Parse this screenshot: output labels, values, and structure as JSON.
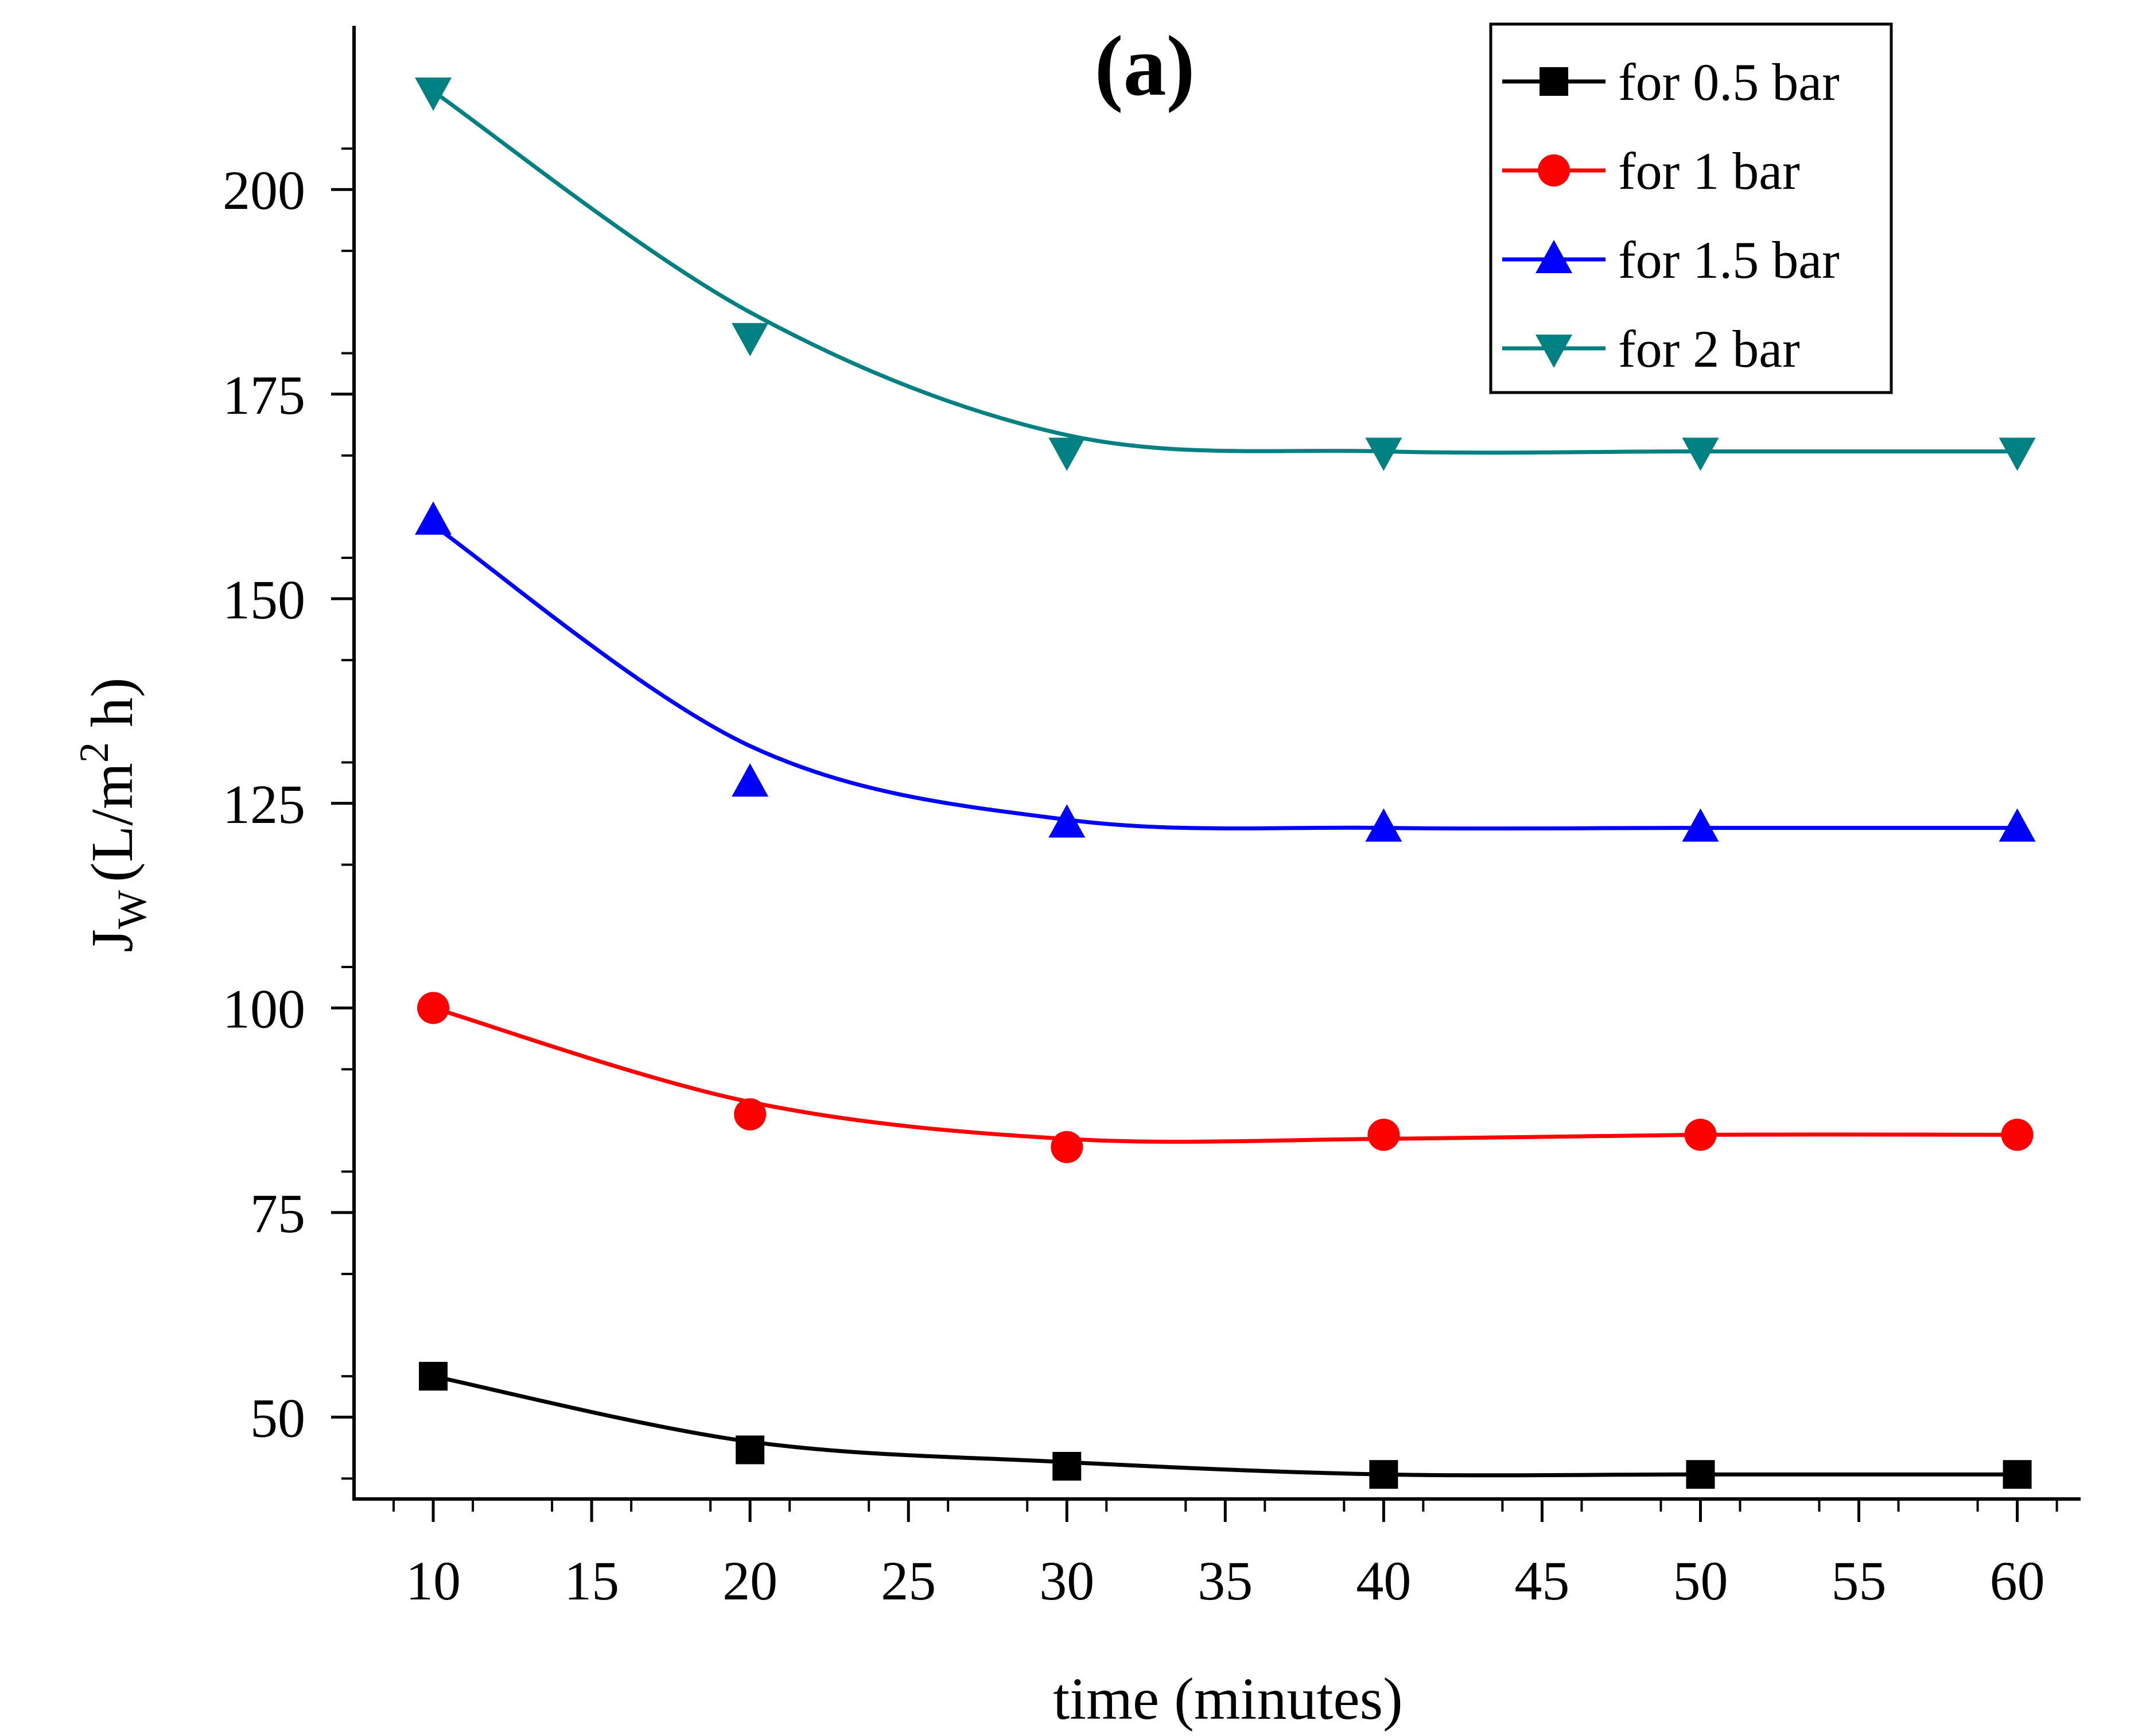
{
  "chart_data": {
    "type": "line",
    "panel_label": "(a)",
    "xlabel": "time (minutes)",
    "ylabel": {
      "main": "J",
      "subscript": "W",
      "units_prefix": "(L/m",
      "units_superscript": "2",
      "units_suffix": " h)"
    },
    "xlim": [
      7.5,
      62
    ],
    "ylim": [
      40,
      220
    ],
    "xticks": [
      10,
      15,
      20,
      25,
      30,
      35,
      40,
      45,
      50,
      55,
      60
    ],
    "yticks": [
      50,
      75,
      100,
      125,
      150,
      175,
      200
    ],
    "legend_position": "top-right",
    "x": [
      10,
      20,
      30,
      40,
      50,
      60
    ],
    "series": [
      {
        "name": "for 0.5 bar",
        "color": "#000000",
        "marker": "square",
        "values": [
          55,
          46,
          44,
          43,
          43,
          43
        ],
        "fit": [
          55,
          47,
          44.5,
          43,
          43,
          43
        ]
      },
      {
        "name": "for 1 bar",
        "color": "#ff0000",
        "marker": "circle",
        "values": [
          100,
          87,
          83,
          84.5,
          84.5,
          84.5
        ],
        "fit": [
          100,
          88.5,
          84,
          84,
          84.5,
          84.5
        ]
      },
      {
        "name": "for 1.5 bar",
        "color": "#0000ff",
        "marker": "triangle-up",
        "values": [
          159.5,
          127.5,
          122.5,
          122,
          122,
          122
        ],
        "fit": [
          159,
          132,
          123,
          122,
          122,
          122
        ]
      },
      {
        "name": "for 2 bar",
        "color": "#008080",
        "marker": "triangle-down",
        "values": [
          212,
          182,
          168,
          168,
          168,
          168
        ],
        "fit": [
          212,
          185,
          170,
          168,
          168,
          168
        ]
      }
    ]
  }
}
